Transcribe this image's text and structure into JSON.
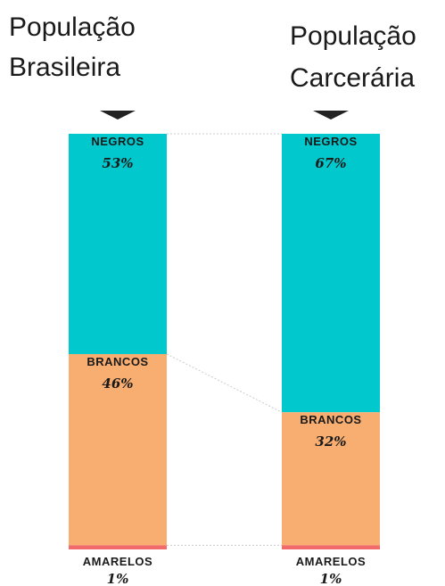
{
  "chart_data": {
    "type": "bar",
    "stacked": true,
    "unit": "%",
    "categories": [
      "População Brasileira",
      "População Carcerária"
    ],
    "category_title_lines": [
      [
        "População",
        "Brasileira"
      ],
      [
        "População",
        "Carcerária"
      ]
    ],
    "series": [
      {
        "name": "NEGROS",
        "values": [
          53,
          67
        ],
        "value_labels": [
          "53%",
          "67%"
        ],
        "color": "#00c8cc"
      },
      {
        "name": "BRANCOS",
        "values": [
          46,
          32
        ],
        "value_labels": [
          "46%",
          "32%"
        ],
        "color": "#f8ae70"
      },
      {
        "name": "AMARELOS",
        "values": [
          1,
          1
        ],
        "value_labels": [
          "1%",
          "1%"
        ],
        "color": "#f26b6b"
      }
    ],
    "ylim": [
      0,
      100
    ],
    "connector_color": "#cccccc",
    "marker_color": "#222222",
    "text_color": "#1a1a1a"
  }
}
